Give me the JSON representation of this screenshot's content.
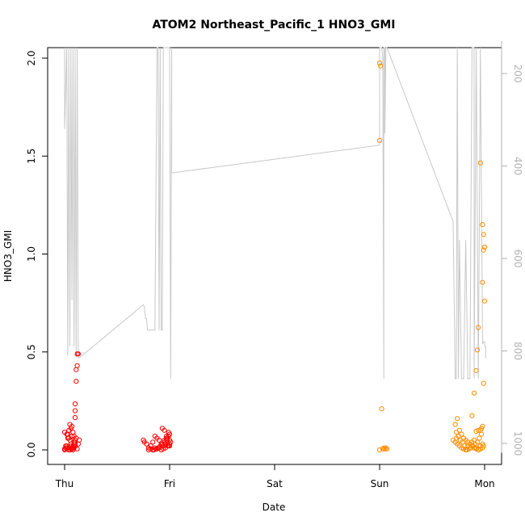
{
  "chart_data": {
    "type": "scatter",
    "title": "ATOM2 Northeast_Pacific_1 HNO3_GMI",
    "xlabel": "Date",
    "ylabel": "HNO3_GMI",
    "x_ticks": [
      "Thu",
      "Fri",
      "Sat",
      "Sun",
      "Mon"
    ],
    "ylim": [
      0,
      2.0
    ],
    "y_ticks": [
      "0.0",
      "0.5",
      "1.0",
      "1.5",
      "2.0"
    ],
    "y2_ticks": [
      "200",
      "400",
      "600",
      "800",
      "1000"
    ],
    "y2_range": [
      130,
      1020
    ],
    "colors": {
      "series_red": "#ff0000",
      "series_orange": "#ff8c00",
      "pressure_line": "#c8c8c8",
      "right_axis": "#b3b3b3"
    },
    "series": [
      {
        "color": "#ff0000",
        "x": [
          0.0,
          0.01,
          0.02,
          0.03,
          0.04,
          0.05,
          0.06,
          0.07,
          0.08,
          0.09,
          0.1,
          0.0,
          0.02,
          0.04,
          0.06,
          0.08,
          0.1,
          0.12,
          0.03,
          0.05,
          0.07,
          0.09,
          0.11,
          0.0,
          0.02,
          0.04,
          0.06,
          0.08,
          0.1,
          0.01,
          0.03,
          0.05,
          0.07,
          0.09,
          0.1,
          0.1,
          0.1,
          0.11,
          0.11,
          0.12,
          0.12,
          0.13,
          0.13,
          0.14,
          0.08,
          0.09,
          0.1,
          0.06,
          0.07,
          0.75,
          0.76,
          0.78,
          0.8,
          0.82,
          0.84,
          0.86,
          0.88,
          0.9,
          0.92,
          0.94,
          0.95,
          0.96,
          0.97,
          0.98,
          0.99,
          1.0,
          1.0,
          1.01,
          0.9,
          0.92,
          0.94,
          0.96,
          0.98,
          1.0,
          0.85,
          0.87,
          0.89,
          0.91,
          0.93,
          0.95,
          0.97,
          0.99,
          0.93,
          0.95,
          0.97,
          0.99,
          0.8,
          0.82,
          0.84,
          0.86,
          0.88,
          0.96,
          0.98,
          1.0
        ],
        "y": [
          0.005,
          0.01,
          0.02,
          0.08,
          0.1,
          0.13,
          0.11,
          0.12,
          0.09,
          0.07,
          0.05,
          0.0,
          0.01,
          0.0,
          0.005,
          0.01,
          0.02,
          0.005,
          0.06,
          0.05,
          0.07,
          0.04,
          0.06,
          0.09,
          0.08,
          0.06,
          0.03,
          0.02,
          0.04,
          0.02,
          0.01,
          0.0,
          0.01,
          0.02,
          0.165,
          0.2,
          0.235,
          0.35,
          0.41,
          0.43,
          0.49,
          0.49,
          0.03,
          0.05,
          0.0,
          0.01,
          0.03,
          0.02,
          0.005,
          0.05,
          0.04,
          0.03,
          0.01,
          0.02,
          0.04,
          0.07,
          0.06,
          0.05,
          0.03,
          0.02,
          0.04,
          0.03,
          0.05,
          0.06,
          0.07,
          0.08,
          0.02,
          0.04,
          0.01,
          0.0,
          0.005,
          0.01,
          0.02,
          0.03,
          0.0,
          0.005,
          0.01,
          0.02,
          0.03,
          0.05,
          0.07,
          0.09,
          0.11,
          0.1,
          0.06,
          0.02,
          0.0,
          0.005,
          0.0,
          0.01,
          0.005,
          0.03,
          0.04,
          0.05
        ]
      },
      {
        "color": "#ff8c00",
        "x": [
          3.0,
          3.01,
          3.0,
          3.02,
          3.03,
          3.04,
          3.05,
          3.06,
          3.07,
          3.0,
          3.7,
          3.72,
          3.73,
          3.74,
          3.75,
          3.76,
          3.78,
          3.8,
          3.82,
          3.84,
          3.86,
          3.88,
          3.9,
          3.92,
          3.94,
          3.96,
          3.98,
          3.72,
          3.74,
          3.76,
          3.78,
          3.8,
          3.82,
          3.84,
          3.86,
          3.88,
          3.9,
          3.92,
          3.94,
          3.96,
          3.98,
          3.73,
          3.75,
          3.77,
          3.79,
          3.81,
          3.83,
          3.85,
          3.87,
          3.89,
          3.91,
          3.93,
          3.95,
          3.97,
          3.99,
          3.88,
          3.9,
          3.92,
          3.93,
          3.94,
          3.96,
          3.97,
          3.98,
          3.99,
          4.0,
          3.98,
          3.99,
          3.99,
          4.0,
          3.98,
          3.92,
          3.94,
          3.96
        ],
        "y": [
          1.975,
          1.96,
          1.58,
          0.21,
          0.005,
          0.01,
          0.005,
          0.01,
          0.005,
          0.0,
          0.05,
          0.04,
          0.06,
          0.03,
          0.07,
          0.02,
          0.01,
          0.005,
          0.0,
          0.02,
          0.03,
          0.04,
          0.05,
          0.01,
          0.0,
          0.02,
          0.03,
          0.13,
          0.16,
          0.1,
          0.08,
          0.06,
          0.05,
          0.04,
          0.03,
          0.02,
          0.01,
          0.005,
          0.0,
          0.005,
          0.01,
          0.09,
          0.07,
          0.05,
          0.04,
          0.02,
          0.0,
          0.005,
          0.01,
          0.02,
          0.03,
          0.04,
          0.06,
          0.08,
          0.02,
          0.175,
          0.29,
          0.405,
          0.51,
          0.625,
          0.1,
          0.11,
          0.12,
          0.34,
          0.76,
          0.855,
          1.02,
          1.1,
          1.035,
          1.15,
          0.095,
          0.1,
          1.465
        ]
      }
    ],
    "pressure_line": {
      "x": [
        0.0,
        0.0,
        0.02,
        0.03,
        0.04,
        0.05,
        0.06,
        0.07,
        0.08,
        0.09,
        0.1,
        0.11,
        0.12,
        0.12,
        0.13,
        0.14,
        0.75,
        0.75,
        0.76,
        0.77,
        0.78,
        0.79,
        0.8,
        0.82,
        0.84,
        0.86,
        0.88,
        0.89,
        0.9,
        0.91,
        0.92,
        0.93,
        0.94,
        0.95,
        0.96,
        0.97,
        0.98,
        0.99,
        1.0,
        1.0,
        1.01,
        1.02,
        1.02,
        3.0,
        3.0,
        3.02,
        3.03,
        3.04,
        3.04,
        3.05,
        3.05,
        3.06,
        3.06,
        3.07,
        3.07,
        3.7,
        3.72,
        3.73,
        3.74,
        3.75,
        3.76,
        3.78,
        3.8,
        3.82,
        3.84,
        3.86,
        3.88,
        3.9,
        3.9,
        3.92,
        3.94,
        3.96,
        3.98,
        3.98,
        3.99,
        4.0,
        4.0,
        4.01,
        4.01
      ],
      "y": [
        130,
        320,
        130,
        810,
        130,
        790,
        130,
        690,
        130,
        790,
        130,
        815,
        130,
        130,
        815,
        815,
        700,
        700,
        705,
        730,
        730,
        755,
        755,
        755,
        755,
        755,
        130,
        130,
        755,
        130,
        755,
        755,
        130,
        130,
        130,
        130,
        130,
        130,
        130,
        130,
        860,
        130,
        415,
        355,
        130,
        130,
        165,
        860,
        130,
        130,
        330,
        130,
        130,
        130,
        130,
        520,
        860,
        860,
        130,
        860,
        560,
        860,
        860,
        560,
        860,
        860,
        130,
        130,
        860,
        130,
        860,
        130,
        775,
        785,
        780,
        780,
        790,
        790,
        815
      ]
    }
  }
}
